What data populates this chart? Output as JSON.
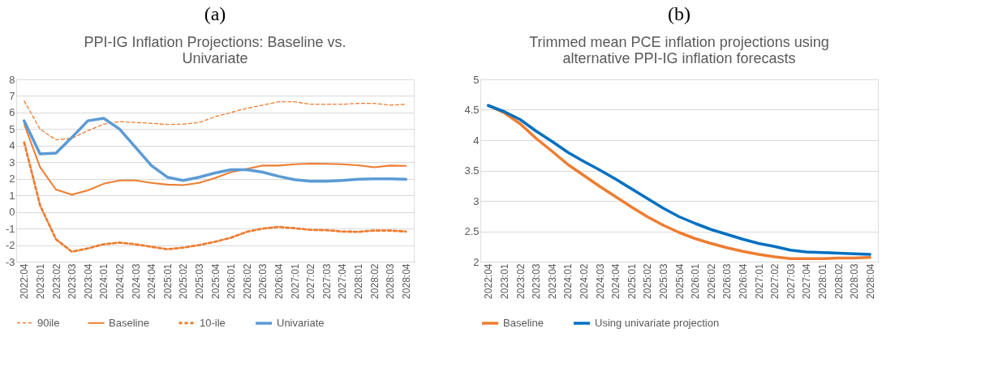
{
  "chart_data": [
    {
      "type": "line",
      "title": "PPI-IG Inflation Projections: Baseline vs. Univariate",
      "annotations": [
        "(a)"
      ],
      "categories": [
        "2022:04",
        "2023:01",
        "2023:02",
        "2023:03",
        "2023:04",
        "2024:01",
        "2024:02",
        "2024:03",
        "2024:04",
        "2025:01",
        "2025:02",
        "2025:03",
        "2025:04",
        "2026:01",
        "2026:02",
        "2026:03",
        "2026:04",
        "2027:01",
        "2027:02",
        "2027:03",
        "2027:04",
        "2028:01",
        "2028:02",
        "2028:03",
        "2028:04"
      ],
      "series": [
        {
          "name": "90ile",
          "color": "#ed7d31",
          "line_style": "dashed",
          "values": [
            6.7,
            5.0,
            4.35,
            4.45,
            4.9,
            5.3,
            5.45,
            5.4,
            5.35,
            5.28,
            5.3,
            5.4,
            5.75,
            6.0,
            6.25,
            6.45,
            6.65,
            6.65,
            6.5,
            6.5,
            6.5,
            6.55,
            6.55,
            6.45,
            6.5
          ]
        },
        {
          "name": "Baseline",
          "color": "#ed7d31",
          "line_style": "solid",
          "values": [
            5.3,
            2.7,
            1.35,
            1.05,
            1.3,
            1.7,
            1.9,
            1.9,
            1.75,
            1.65,
            1.62,
            1.75,
            2.05,
            2.4,
            2.6,
            2.8,
            2.8,
            2.88,
            2.92,
            2.9,
            2.88,
            2.82,
            2.7,
            2.8,
            2.78
          ]
        },
        {
          "name": "10-ile",
          "color": "#ed7d31",
          "line_style": "dashed",
          "values": [
            4.2,
            0.4,
            -1.65,
            -2.4,
            -2.2,
            -1.95,
            -1.85,
            -1.95,
            -2.1,
            -2.25,
            -2.15,
            -2.0,
            -1.8,
            -1.55,
            -1.2,
            -1.0,
            -0.9,
            -0.98,
            -1.08,
            -1.1,
            -1.18,
            -1.2,
            -1.12,
            -1.12,
            -1.18
          ]
        },
        {
          "name": "Univariate",
          "color": "#5b9bd5",
          "line_style": "solid",
          "values": [
            5.5,
            3.5,
            3.55,
            4.5,
            5.5,
            5.65,
            5.0,
            3.9,
            2.8,
            2.1,
            1.9,
            2.1,
            2.35,
            2.55,
            2.55,
            2.4,
            2.15,
            1.95,
            1.85,
            1.85,
            1.9,
            1.97,
            2.0,
            2.0,
            1.97
          ]
        }
      ],
      "ylim": [
        -3,
        8
      ],
      "yticks": [
        -3,
        -2,
        -1,
        0,
        1,
        2,
        3,
        4,
        5,
        6,
        7,
        8
      ],
      "grid": "y",
      "legend": "bottom"
    },
    {
      "type": "line",
      "title": "Trimmed mean PCE inflation projections using alternative PPI-IG inflation forecasts",
      "annotations": [
        "(b)"
      ],
      "categories": [
        "2022:04",
        "2023:01",
        "2023:02",
        "2023:03",
        "2023:04",
        "2024:01",
        "2024:02",
        "2024:03",
        "2024:04",
        "2025:01",
        "2025:02",
        "2025:03",
        "2025:04",
        "2026:01",
        "2026:02",
        "2026:03",
        "2026:04",
        "2027:01",
        "2027:02",
        "2027:03",
        "2027:04",
        "2028:01",
        "2028:02",
        "2028:03",
        "2028:04"
      ],
      "series": [
        {
          "name": "Baseline",
          "color": "#ed7d31",
          "line_style": "solid",
          "values": [
            4.57,
            4.45,
            4.27,
            4.03,
            3.82,
            3.6,
            3.42,
            3.24,
            3.07,
            2.9,
            2.74,
            2.6,
            2.48,
            2.38,
            2.3,
            2.23,
            2.17,
            2.12,
            2.08,
            2.05,
            2.05,
            2.05,
            2.06,
            2.06,
            2.07
          ]
        },
        {
          "name": "Using univariate projection",
          "color": "#0070c0",
          "line_style": "solid",
          "values": [
            4.57,
            4.47,
            4.34,
            4.15,
            3.98,
            3.8,
            3.65,
            3.51,
            3.36,
            3.2,
            3.04,
            2.88,
            2.74,
            2.63,
            2.53,
            2.45,
            2.37,
            2.3,
            2.25,
            2.19,
            2.16,
            2.15,
            2.14,
            2.13,
            2.12
          ]
        }
      ],
      "ylim": [
        2,
        5
      ],
      "yticks": [
        2,
        2.5,
        3,
        3.5,
        4,
        4.5,
        5
      ],
      "grid": "y",
      "legend": "bottom"
    }
  ]
}
